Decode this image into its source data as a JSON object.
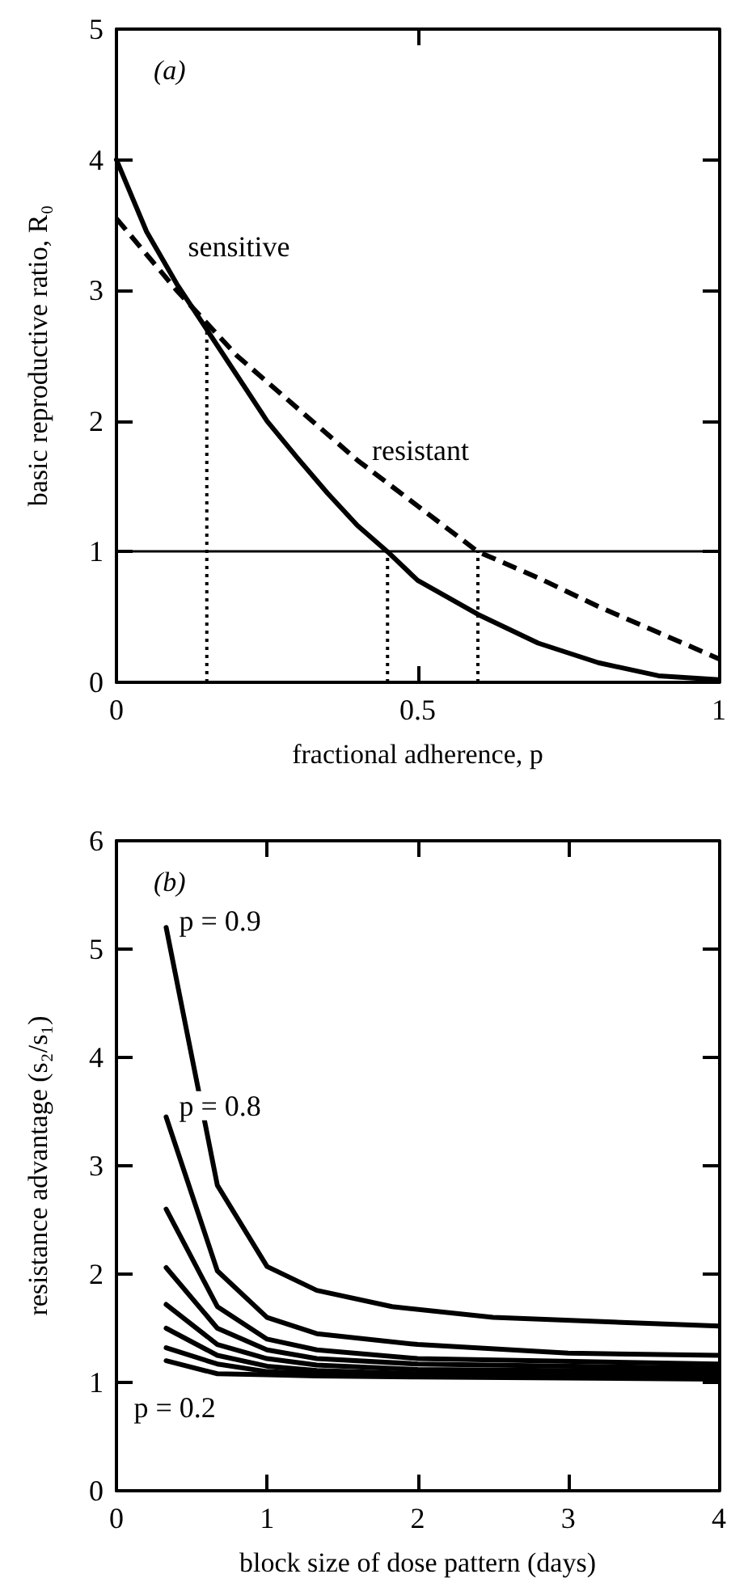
{
  "chart_data": [
    {
      "type": "line",
      "title": "(a)",
      "xlabel": "fractional adherence, p",
      "ylabel": "basic reproductive ratio, R₀",
      "xlim": [
        0,
        1
      ],
      "xticks": [
        0,
        0.5,
        1
      ],
      "ylim": [
        0,
        5
      ],
      "yticks": [
        0,
        1,
        2,
        3,
        4,
        5
      ],
      "grid": false,
      "marker": "none",
      "series": [
        {
          "name": "sensitive",
          "color": "#000000",
          "line_style": "solid",
          "x": [
            0,
            0.05,
            0.1,
            0.15,
            0.2,
            0.25,
            0.3,
            0.35,
            0.4,
            0.45,
            0.5,
            0.6,
            0.7,
            0.8,
            0.9,
            1
          ],
          "values": [
            4,
            3.45,
            3.05,
            2.7,
            2.35,
            2.0,
            1.72,
            1.45,
            1.2,
            1.0,
            0.78,
            0.52,
            0.3,
            0.15,
            0.05,
            0.02
          ]
        },
        {
          "name": "resistant",
          "color": "#000000",
          "line_style": "dashed",
          "x": [
            0,
            0.1,
            0.2,
            0.3,
            0.4,
            0.5,
            0.6,
            0.7,
            0.8,
            0.9,
            1
          ],
          "values": [
            3.55,
            3.0,
            2.5,
            2.1,
            1.7,
            1.35,
            1.0,
            0.8,
            0.58,
            0.38,
            0.18
          ]
        },
        {
          "color": "#000000",
          "line_style": "dotted",
          "x": [
            0.15,
            0.15
          ],
          "values": [
            0,
            2.7
          ]
        },
        {
          "color": "#000000",
          "line_style": "dotted",
          "x": [
            0.45,
            0.45
          ],
          "values": [
            0,
            1.0
          ]
        },
        {
          "color": "#000000",
          "line_style": "dotted",
          "x": [
            0.6,
            0.6
          ],
          "values": [
            0,
            1.0
          ]
        }
      ],
      "ref_lines": [
        {
          "axis": "y",
          "value": 1,
          "color": "#000000",
          "line_style": "solid"
        }
      ]
    },
    {
      "type": "line",
      "title": "(b)",
      "xlabel": "block size of dose pattern (days)",
      "ylabel": "resistance advantage (s₂/s₁)",
      "xlim": [
        0,
        4
      ],
      "xticks": [
        0,
        1,
        2,
        3,
        4
      ],
      "ylim": [
        0,
        6
      ],
      "yticks": [
        0,
        1,
        2,
        3,
        4,
        5,
        6
      ],
      "grid": false,
      "marker": "none",
      "line_style": "solid",
      "series": [
        {
          "name": "p = 0.9",
          "color": "#000000",
          "x": [
            0.33,
            0.67,
            1,
            1.33,
            1.83,
            2.5,
            4
          ],
          "values": [
            5.2,
            2.82,
            2.07,
            1.85,
            1.7,
            1.6,
            1.52
          ]
        },
        {
          "name": "p = 0.8",
          "color": "#000000",
          "x": [
            0.33,
            0.67,
            1,
            1.33,
            2,
            3,
            4
          ],
          "values": [
            3.45,
            2.03,
            1.6,
            1.45,
            1.35,
            1.27,
            1.25
          ]
        },
        {
          "color": "#000000",
          "x": [
            0.33,
            0.67,
            1,
            1.33,
            2,
            4
          ],
          "values": [
            2.6,
            1.7,
            1.4,
            1.3,
            1.22,
            1.17
          ]
        },
        {
          "color": "#000000",
          "x": [
            0.33,
            0.67,
            1,
            1.33,
            2,
            4
          ],
          "values": [
            2.06,
            1.5,
            1.3,
            1.22,
            1.17,
            1.13
          ]
        },
        {
          "color": "#000000",
          "x": [
            0.33,
            0.67,
            1,
            1.33,
            2,
            4
          ],
          "values": [
            1.72,
            1.35,
            1.22,
            1.16,
            1.12,
            1.1
          ]
        },
        {
          "color": "#000000",
          "x": [
            0.33,
            0.67,
            1,
            1.33,
            2,
            4
          ],
          "values": [
            1.5,
            1.25,
            1.15,
            1.11,
            1.08,
            1.07
          ]
        },
        {
          "color": "#000000",
          "x": [
            0.33,
            0.67,
            1,
            1.33,
            2,
            4
          ],
          "values": [
            1.32,
            1.17,
            1.1,
            1.08,
            1.06,
            1.05
          ]
        },
        {
          "name": "p = 0.2",
          "color": "#000000",
          "x": [
            0.33,
            0.67,
            1,
            1.33,
            2,
            4
          ],
          "values": [
            1.2,
            1.08,
            1.07,
            1.06,
            1.05,
            1.03
          ]
        }
      ]
    }
  ]
}
